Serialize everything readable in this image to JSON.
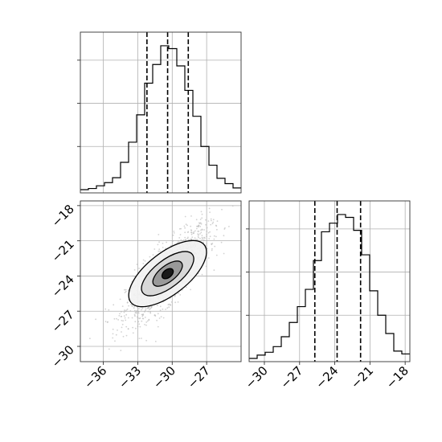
{
  "chart_data": [
    {
      "type": "histogram",
      "panel": "marginal-x",
      "title": "",
      "xlim": [
        -38.0,
        -24.0
      ],
      "x_ticks": [
        -36,
        -33,
        -30,
        -27
      ],
      "bin_edges": [
        -38.0,
        -37.3,
        -36.6,
        -35.9,
        -35.2,
        -34.5,
        -33.8,
        -33.1,
        -32.4,
        -31.7,
        -31.0,
        -30.3,
        -29.6,
        -28.9,
        -28.2,
        -27.5,
        -26.8,
        -26.1,
        -25.4,
        -24.7,
        -24.0
      ],
      "counts": [
        0.0,
        0.008,
        0.027,
        0.049,
        0.083,
        0.19,
        0.33,
        0.52,
        0.74,
        0.87,
        1.0,
        0.98,
        0.86,
        0.69,
        0.51,
        0.3,
        0.17,
        0.079,
        0.042,
        0.012
      ],
      "quantile_lines": [
        -32.2,
        -30.4,
        -28.6
      ],
      "grid": true
    },
    {
      "type": "histogram",
      "panel": "marginal-y",
      "title": "",
      "xlim": [
        -31.3,
        -17.6
      ],
      "x_ticks": [
        -30,
        -27,
        -24,
        -21,
        -18
      ],
      "bin_edges": [
        -31.3,
        -30.615,
        -29.93,
        -29.245,
        -28.56,
        -27.875,
        -27.19,
        -26.505,
        -25.82,
        -25.135,
        -24.45,
        -23.765,
        -23.08,
        -22.395,
        -21.71,
        -21.025,
        -20.34,
        -19.655,
        -18.97,
        -18.285,
        -17.6
      ],
      "counts": [
        0.0,
        0.023,
        0.043,
        0.082,
        0.151,
        0.25,
        0.36,
        0.48,
        0.68,
        0.88,
        0.94,
        1.0,
        0.98,
        0.89,
        0.72,
        0.47,
        0.3,
        0.173,
        0.051,
        0.031
      ],
      "quantile_lines": [
        -25.7,
        -23.8,
        -21.8
      ],
      "grid": true
    },
    {
      "type": "scatter",
      "panel": "joint",
      "title": "",
      "xlim": [
        -38.0,
        -24.0
      ],
      "ylim": [
        -31.3,
        -17.6
      ],
      "x_ticks": [
        -36,
        -33,
        -30,
        -27
      ],
      "y_ticks": [
        -30,
        -27,
        -24,
        -21,
        -18
      ],
      "mean": [
        -30.4,
        -23.8
      ],
      "sigma": [
        1.8,
        1.95
      ],
      "correlation": 0.78,
      "density_levels": [
        "outer",
        "middle",
        "inner",
        "core"
      ],
      "grid": true
    }
  ],
  "colors": {
    "line": "#000000",
    "grid": "#b0b0b0",
    "points": "#b4b4b4",
    "contour_outer": "#f2f2f2",
    "contour_middle": "#d6d6d6",
    "contour_inner": "#999999",
    "contour_core": "#1a1a1a"
  }
}
